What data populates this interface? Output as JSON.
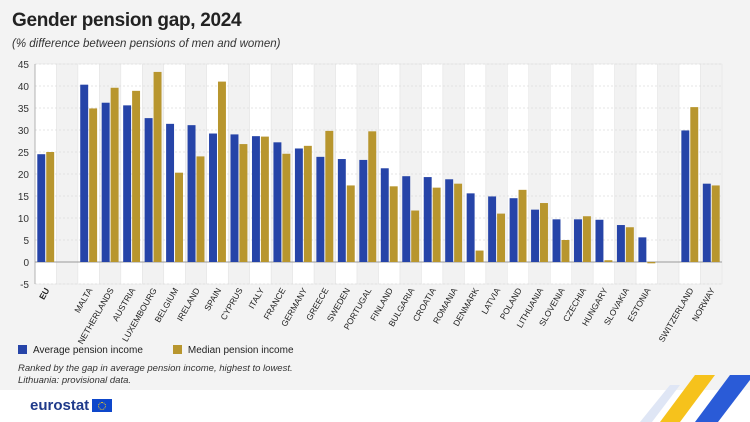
{
  "header": {
    "title": "Gender pension gap, 2024",
    "subtitle": "(% difference between pensions of men and women)"
  },
  "chart_data": {
    "type": "bar",
    "title": "Gender pension gap, 2024",
    "subtitle": "(% difference between pensions of men and women)",
    "categories": [
      "EU",
      "",
      "MALTA",
      "NETHERLANDS",
      "AUSTRIA",
      "LUXEMBOURG",
      "BELGIUM",
      "IRELAND",
      "SPAIN",
      "CYPRUS",
      "ITALY",
      "FRANCE",
      "GERMANY",
      "GREECE",
      "SWEDEN",
      "PORTUGAL",
      "FINLAND",
      "BULGARIA",
      "CROATIA",
      "ROMANIA",
      "DENMARK",
      "LATVIA",
      "POLAND",
      "LITHUANIA",
      "SLOVENIA",
      "CZECHIA",
      "HUNGARY",
      "SLOVAKIA",
      "ESTONIA",
      "",
      "SWITZERLAND",
      "NORWAY"
    ],
    "series": [
      {
        "name": "Average pension income",
        "color": "#2644a8",
        "values": [
          24.5,
          null,
          40.3,
          36.2,
          35.6,
          32.7,
          31.4,
          31.1,
          29.2,
          29.0,
          28.6,
          27.2,
          25.8,
          23.9,
          23.4,
          23.2,
          21.3,
          19.5,
          19.3,
          18.8,
          15.6,
          14.9,
          14.5,
          11.9,
          9.7,
          9.7,
          9.6,
          8.4,
          5.6,
          null,
          29.9,
          17.8
        ]
      },
      {
        "name": "Median pension income",
        "color": "#b8962e",
        "values": [
          25.0,
          null,
          34.9,
          39.6,
          38.9,
          43.2,
          20.3,
          24.0,
          41.0,
          26.8,
          28.5,
          24.6,
          26.4,
          29.8,
          17.4,
          29.7,
          17.2,
          11.7,
          16.9,
          17.8,
          2.6,
          11.0,
          16.4,
          13.4,
          5.0,
          10.4,
          0.4,
          7.9,
          -0.3,
          null,
          35.2,
          17.4
        ]
      }
    ],
    "ylim": [
      -5,
      45
    ],
    "yticks": [
      -5,
      0,
      5,
      10,
      15,
      20,
      25,
      30,
      35,
      40,
      45
    ],
    "grid": true,
    "legend": "bottom-left"
  },
  "notes": [
    "Ranked by the gap in average pension income, highest to lowest.",
    "Lithuania: provisional data."
  ],
  "logo": "eurostat"
}
